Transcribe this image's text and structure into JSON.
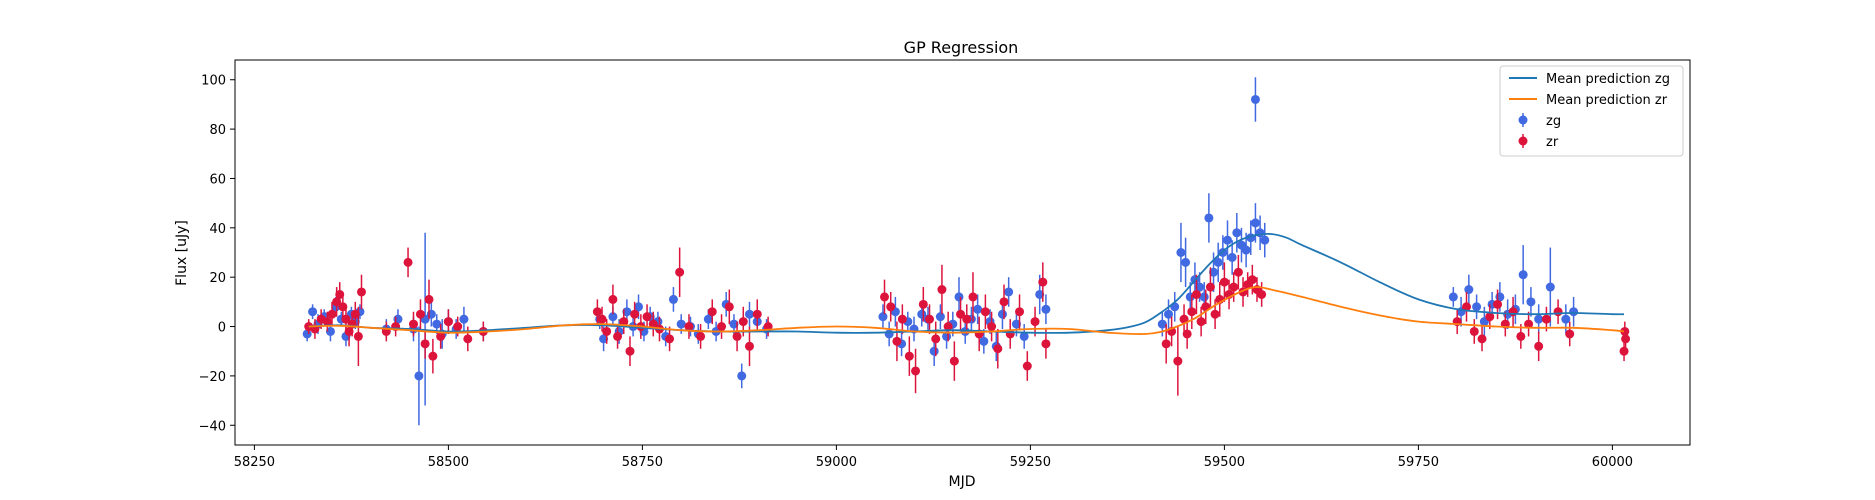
{
  "chart_data": {
    "type": "scatter",
    "title": "GP Regression",
    "xlabel": "MJD",
    "ylabel": "Flux [uJy]",
    "xlim": [
      58225,
      60100
    ],
    "ylim": [
      -48,
      108
    ],
    "xticks": [
      58250,
      58500,
      58750,
      59000,
      59250,
      59500,
      59750,
      60000
    ],
    "yticks": [
      -40,
      -20,
      0,
      20,
      40,
      60,
      80,
      100
    ],
    "legend_position": "top-right",
    "lines": [
      {
        "name": "Mean prediction zg",
        "color": "#1f77b4",
        "x": [
          58320,
          58360,
          58400,
          58450,
          58500,
          58550,
          58600,
          58650,
          58700,
          58750,
          58800,
          58850,
          58900,
          58950,
          59000,
          59050,
          59100,
          59150,
          59200,
          59250,
          59300,
          59350,
          59380,
          59400,
          59420,
          59440,
          59460,
          59480,
          59500,
          59520,
          59540,
          59560,
          59580,
          59600,
          59650,
          59700,
          59750,
          59800,
          59850,
          59900,
          59950,
          60000,
          60015
        ],
        "y": [
          0,
          0.5,
          -0.5,
          -1,
          -2,
          -1.5,
          -0.5,
          0.5,
          0.5,
          -0.5,
          -1.5,
          -2,
          -2,
          -2,
          -2.5,
          -2.5,
          -2,
          -1.5,
          -2,
          -2.5,
          -2.5,
          -1.5,
          0,
          2,
          6,
          11,
          18,
          25,
          31,
          35,
          37,
          37.5,
          36,
          33,
          26,
          18,
          11,
          7,
          5.5,
          5,
          5.5,
          5,
          5
        ]
      },
      {
        "name": "Mean prediction zr",
        "color": "#ff7f0e",
        "x": [
          58320,
          58360,
          58400,
          58450,
          58500,
          58550,
          58600,
          58650,
          58700,
          58750,
          58800,
          58850,
          58900,
          58950,
          59000,
          59050,
          59100,
          59150,
          59200,
          59250,
          59300,
          59350,
          59400,
          59430,
          59460,
          59490,
          59520,
          59540,
          59560,
          59600,
          59650,
          59700,
          59750,
          59800,
          59850,
          59900,
          59950,
          60000,
          60015
        ],
        "y": [
          0,
          0.3,
          -0.5,
          -1.5,
          -2.5,
          -2,
          -1,
          0.5,
          1,
          0,
          -1.5,
          -2,
          -1.5,
          -0.5,
          0,
          -0.5,
          -2,
          -2.5,
          -2,
          -1,
          -1,
          -2.5,
          -3,
          -1,
          3,
          9,
          14,
          16,
          15,
          12,
          8,
          4.5,
          2,
          1,
          0,
          -0.5,
          -0.5,
          -1.5,
          -2
        ]
      }
    ],
    "series": [
      {
        "name": "zg",
        "color": "#4169e1",
        "x": [
          58318,
          58325,
          58332,
          58340,
          58348,
          58355,
          58362,
          58368,
          58375,
          58380,
          58386,
          58420,
          58435,
          58455,
          58462,
          58470,
          58478,
          58485,
          58492,
          58500,
          58510,
          58520,
          58545,
          58695,
          58700,
          58712,
          58720,
          58730,
          58738,
          58745,
          58752,
          58760,
          58770,
          58780,
          58790,
          58800,
          58812,
          58822,
          58835,
          58845,
          58858,
          58868,
          58878,
          58888,
          58898,
          58910,
          59060,
          59068,
          59076,
          59084,
          59092,
          59100,
          59110,
          59118,
          59126,
          59134,
          59142,
          59150,
          59158,
          59166,
          59174,
          59182,
          59190,
          59198,
          59206,
          59214,
          59222,
          59232,
          59242,
          59262,
          59270,
          59420,
          59428,
          59436,
          59444,
          59450,
          59456,
          59462,
          59468,
          59474,
          59480,
          59486,
          59492,
          59498,
          59504,
          59510,
          59516,
          59522,
          59528,
          59534,
          59540,
          59546,
          59552,
          59540,
          59795,
          59805,
          59815,
          59825,
          59835,
          59845,
          59855,
          59865,
          59875,
          59885,
          59895,
          59905,
          59920,
          59940,
          59950
        ],
        "y": [
          -3,
          6,
          1,
          4,
          -2,
          8,
          3,
          -4,
          5,
          2,
          6,
          -1,
          3,
          -1,
          -20,
          3,
          5,
          1,
          -3,
          2,
          -1,
          3,
          -2,
          3,
          -5,
          4,
          -2,
          6,
          0,
          8,
          -2,
          4,
          2,
          -4,
          11,
          1,
          0,
          -3,
          3,
          -2,
          9,
          1,
          -20,
          5,
          2,
          -1,
          4,
          -3,
          6,
          -7,
          2,
          -1,
          5,
          3,
          -10,
          4,
          -4,
          1,
          12,
          -2,
          3,
          7,
          -6,
          2,
          -8,
          5,
          14,
          1,
          -4,
          13,
          7,
          1,
          5,
          8,
          30,
          26,
          12,
          19,
          16,
          12,
          44,
          22,
          26,
          30,
          35,
          28,
          38,
          33,
          31,
          36,
          42,
          38,
          35,
          92,
          12,
          6,
          15,
          8,
          2,
          9,
          12,
          5,
          7,
          21,
          10,
          3,
          16,
          3,
          6
        ],
        "yerr": [
          3,
          3,
          4,
          3,
          4,
          4,
          3,
          4,
          3,
          3,
          3,
          4,
          4,
          5,
          20,
          35,
          5,
          4,
          6,
          5,
          4,
          5,
          4,
          4,
          5,
          4,
          5,
          5,
          4,
          5,
          4,
          4,
          4,
          4,
          5,
          4,
          4,
          4,
          4,
          4,
          5,
          4,
          5,
          5,
          4,
          4,
          5,
          5,
          6,
          5,
          4,
          5,
          5,
          5,
          6,
          5,
          5,
          5,
          8,
          5,
          5,
          6,
          5,
          5,
          6,
          6,
          6,
          5,
          5,
          8,
          6,
          5,
          6,
          6,
          12,
          10,
          6,
          7,
          6,
          6,
          10,
          8,
          8,
          7,
          8,
          7,
          8,
          7,
          7,
          7,
          8,
          7,
          7,
          9,
          4,
          6,
          6,
          5,
          6,
          5,
          6,
          6,
          6,
          12,
          6,
          6,
          16,
          6,
          6
        ]
      },
      {
        "name": "zr",
        "color": "#dc143c",
        "x": [
          58320,
          58328,
          58336,
          58344,
          58350,
          58356,
          58360,
          58364,
          58368,
          58372,
          58376,
          58380,
          58384,
          58388,
          58420,
          58432,
          58448,
          58455,
          58464,
          58470,
          58475,
          58480,
          58490,
          58500,
          58512,
          58525,
          58545,
          58692,
          58698,
          58704,
          58712,
          58718,
          58726,
          58734,
          58740,
          58748,
          58756,
          58764,
          58772,
          58785,
          58798,
          58810,
          58825,
          58840,
          58852,
          58862,
          58872,
          58880,
          58888,
          58898,
          58912,
          59062,
          59070,
          59078,
          59085,
          59094,
          59102,
          59112,
          59120,
          59128,
          59136,
          59144,
          59152,
          59160,
          59168,
          59176,
          59184,
          59192,
          59200,
          59208,
          59216,
          59224,
          59236,
          59246,
          59256,
          59266,
          59270,
          59425,
          59432,
          59440,
          59448,
          59452,
          59458,
          59464,
          59470,
          59476,
          59482,
          59488,
          59494,
          59500,
          59506,
          59512,
          59518,
          59524,
          59530,
          59536,
          59542,
          59548,
          59800,
          59812,
          59822,
          59832,
          59842,
          59852,
          59862,
          59872,
          59882,
          59892,
          59905,
          59915,
          59930,
          59945,
          60015,
          60016,
          60017
        ],
        "y": [
          0,
          -1,
          3,
          2,
          5,
          10,
          13,
          8,
          3,
          -2,
          1,
          5,
          -4,
          14,
          -2,
          0,
          26,
          1,
          5,
          -7,
          11,
          -12,
          -4,
          2,
          0,
          -5,
          -2,
          6,
          3,
          -2,
          11,
          -4,
          2,
          -10,
          5,
          0,
          4,
          1,
          -1,
          -5,
          22,
          0,
          -4,
          6,
          0,
          8,
          -4,
          2,
          -8,
          5,
          0,
          12,
          8,
          -6,
          3,
          -12,
          -18,
          9,
          3,
          -5,
          15,
          0,
          -14,
          5,
          3,
          12,
          -3,
          6,
          0,
          -9,
          10,
          -3,
          6,
          -16,
          2,
          18,
          -7,
          -7,
          -2,
          -14,
          3,
          -3,
          6,
          13,
          2,
          8,
          16,
          5,
          11,
          18,
          13,
          16,
          22,
          14,
          17,
          19,
          15,
          13,
          2,
          8,
          -2,
          -5,
          4,
          9,
          1,
          6,
          -4,
          1,
          -8,
          3,
          6,
          -3,
          -10,
          -2,
          -5
        ],
        "yerr": [
          3,
          4,
          4,
          4,
          5,
          6,
          5,
          5,
          5,
          6,
          5,
          5,
          12,
          7,
          4,
          4,
          6,
          5,
          6,
          6,
          8,
          7,
          5,
          5,
          4,
          5,
          4,
          5,
          5,
          5,
          6,
          5,
          5,
          6,
          5,
          5,
          5,
          5,
          5,
          5,
          10,
          5,
          5,
          5,
          5,
          7,
          6,
          6,
          8,
          6,
          4,
          7,
          6,
          8,
          6,
          8,
          9,
          7,
          6,
          7,
          10,
          6,
          8,
          7,
          6,
          10,
          7,
          7,
          6,
          8,
          7,
          6,
          7,
          6,
          6,
          8,
          6,
          8,
          6,
          14,
          6,
          6,
          7,
          8,
          6,
          7,
          8,
          6,
          7,
          8,
          6,
          6,
          7,
          6,
          5,
          6,
          5,
          5,
          5,
          6,
          5,
          5,
          5,
          6,
          5,
          6,
          5,
          5,
          6,
          5,
          5,
          5,
          4,
          4,
          4
        ]
      }
    ]
  }
}
